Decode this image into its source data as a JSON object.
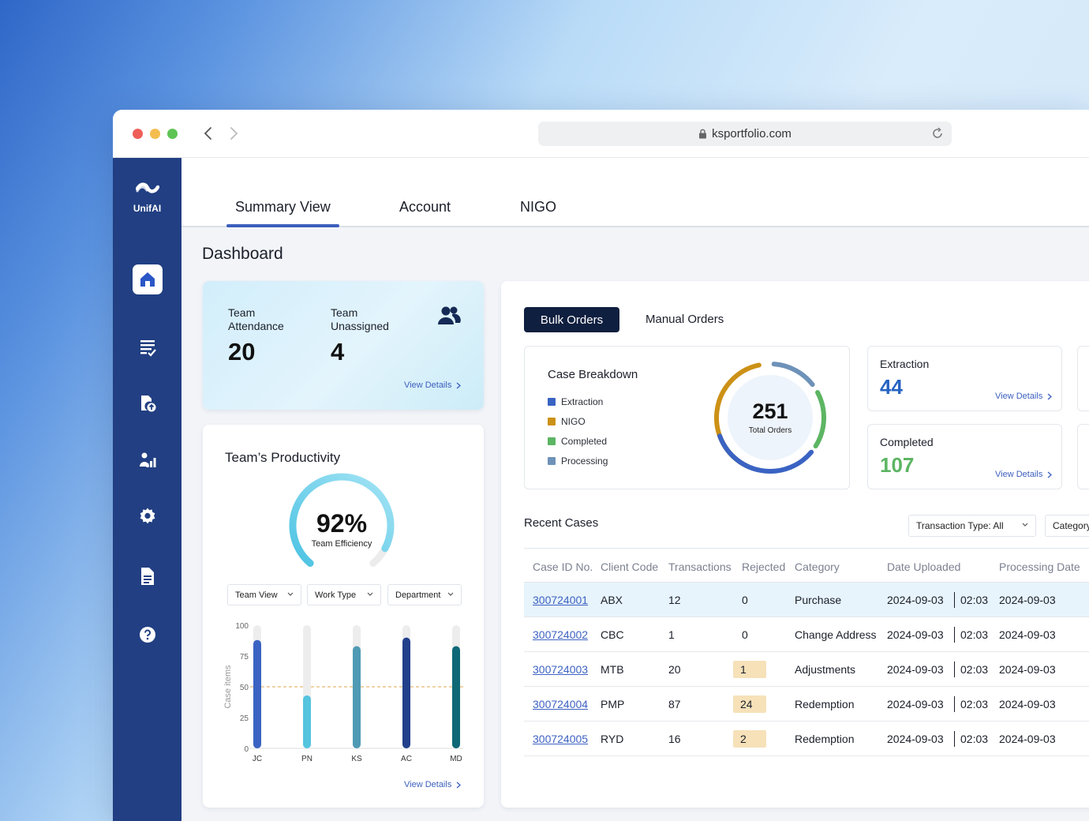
{
  "browser": {
    "url": "ksportfolio.com"
  },
  "sidebar": {
    "brand": "UnifAI"
  },
  "tabs": [
    {
      "label": "Summary View"
    },
    {
      "label": "Account"
    },
    {
      "label": "NIGO"
    }
  ],
  "page_title": "Dashboard",
  "attendance": {
    "attendance_label": "Team Attendance",
    "attendance_value": "20",
    "unassigned_label": "Team Unassigned",
    "unassigned_value": "4",
    "view_details": "View Details"
  },
  "productivity": {
    "title": "Team’s Productivity",
    "efficiency_value": "92%",
    "efficiency_label": "Team Efficiency",
    "efficiency": 0.92,
    "filters": [
      {
        "label": "Team View"
      },
      {
        "label": "Work Type"
      },
      {
        "label": "Department"
      }
    ],
    "view_details": "View Details"
  },
  "chart_data": {
    "type": "bar",
    "ylabel": "Case items",
    "ylim": [
      0,
      100
    ],
    "yticks": [
      100,
      75,
      50,
      25,
      0
    ],
    "threshold": 50,
    "categories": [
      "JC",
      "PN",
      "KS",
      "AC",
      "MD"
    ],
    "values": [
      88,
      43,
      83,
      90,
      83
    ],
    "colors": [
      "#3a63c3",
      "#55c4df",
      "#4f9ab4",
      "#213f8b",
      "#0e6876"
    ]
  },
  "orders": {
    "tabs": [
      {
        "label": "Bulk Orders"
      },
      {
        "label": "Manual Orders"
      }
    ],
    "breakdown": {
      "title": "Case Breakdown",
      "total": "251",
      "total_label": "Total Orders",
      "legend": [
        {
          "label": "Extraction",
          "color": "#3a63c3"
        },
        {
          "label": "NIGO",
          "color": "#cc9116"
        },
        {
          "label": "Completed",
          "color": "#5cb563"
        },
        {
          "label": "Processing",
          "color": "#6e92b8"
        }
      ]
    },
    "stats": [
      {
        "label": "Extraction",
        "value": "44",
        "color": "#2663c2",
        "link": "View Details"
      },
      {
        "label": "Completed",
        "value": "107",
        "color": "#5cb563",
        "link": "View Details"
      }
    ]
  },
  "recent": {
    "title": "Recent Cases",
    "filters": [
      {
        "label": "Transaction Type: All"
      },
      {
        "label": "Category"
      }
    ],
    "columns": [
      "Case ID No.",
      "Client Code",
      "Transactions",
      "Rejected",
      "Category",
      "Date Uploaded",
      "Processing Date"
    ],
    "rows": [
      {
        "id": "300724001",
        "client": "ABX",
        "transactions": "12",
        "rejected": "0",
        "category": "Purchase",
        "date": "2024-09-03",
        "time": "02:03",
        "processing": "2024-09-03",
        "flag": false
      },
      {
        "id": "300724002",
        "client": "CBC",
        "transactions": "1",
        "rejected": "0",
        "category": "Change Address",
        "date": "2024-09-03",
        "time": "02:03",
        "processing": "2024-09-03",
        "flag": false
      },
      {
        "id": "300724003",
        "client": "MTB",
        "transactions": "20",
        "rejected": "1",
        "category": "Adjustments",
        "date": "2024-09-03",
        "time": "02:03",
        "processing": "2024-09-03",
        "flag": true
      },
      {
        "id": "300724004",
        "client": "PMP",
        "transactions": "87",
        "rejected": "24",
        "category": "Redemption",
        "date": "2024-09-03",
        "time": "02:03",
        "processing": "2024-09-03",
        "flag": true
      },
      {
        "id": "300724005",
        "client": "RYD",
        "transactions": "16",
        "rejected": "2",
        "category": "Redemption",
        "date": "2024-09-03",
        "time": "02:03",
        "processing": "2024-09-03",
        "flag": true
      }
    ]
  },
  "icons": {
    "sidebar": [
      "home-icon",
      "checklist-icon",
      "file-upload-icon",
      "analytics-icon",
      "settings-icon",
      "document-icon",
      "help-icon"
    ],
    "header": [
      "team-icon",
      "lock-icon",
      "reload-icon",
      "back-arrow-icon",
      "forward-arrow-icon"
    ]
  }
}
